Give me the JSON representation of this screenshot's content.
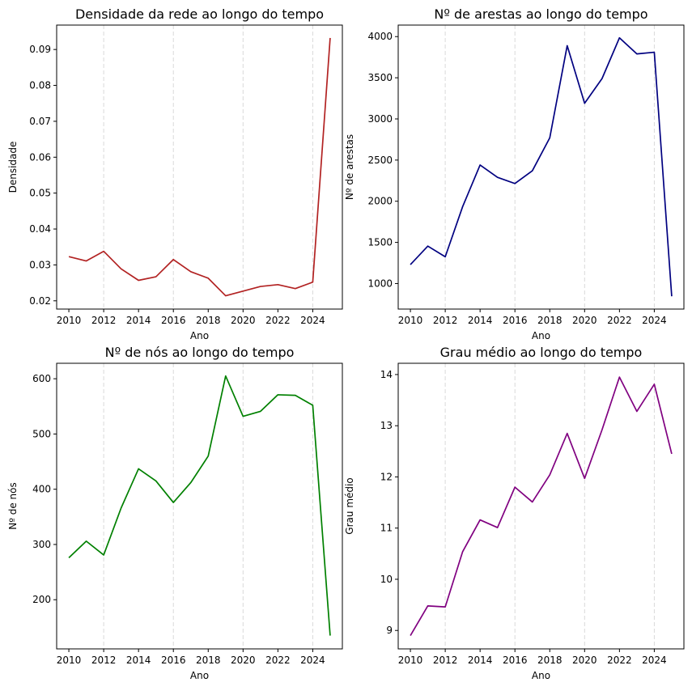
{
  "chart_data": [
    {
      "type": "line",
      "title": "Densidade da rede ao longo do tempo",
      "xlabel": "Ano",
      "ylabel": "Densidade",
      "color": "#b22222",
      "x": [
        2010,
        2011,
        2012,
        2013,
        2014,
        2015,
        2016,
        2017,
        2018,
        2019,
        2020,
        2021,
        2022,
        2023,
        2024,
        2025
      ],
      "values": [
        0.0323,
        0.0311,
        0.0338,
        0.0289,
        0.0257,
        0.0267,
        0.0315,
        0.0281,
        0.0263,
        0.0214,
        0.0227,
        0.024,
        0.0245,
        0.0234,
        0.0252,
        0.0932
      ],
      "xlim": [
        2009.3,
        2025.7
      ],
      "ylim": [
        0.0177,
        0.0968
      ],
      "xticks": [
        2010,
        2012,
        2014,
        2016,
        2018,
        2020,
        2022,
        2024
      ],
      "xtick_labels": [
        "2010",
        "2012",
        "2014",
        "2016",
        "2018",
        "2020",
        "2022",
        "2024"
      ],
      "yticks": [
        0.02,
        0.03,
        0.04,
        0.05,
        0.06,
        0.07,
        0.08,
        0.09
      ],
      "ytick_labels": [
        "0.02",
        "0.03",
        "0.04",
        "0.05",
        "0.06",
        "0.07",
        "0.08",
        "0.09"
      ],
      "grid_x": [
        2012,
        2016,
        2020,
        2024
      ]
    },
    {
      "type": "line",
      "title": "Nº de arestas ao longo do tempo",
      "xlabel": "Ano",
      "ylabel": "Nº de arestas",
      "color": "#000080",
      "x": [
        2010,
        2011,
        2012,
        2013,
        2014,
        2015,
        2016,
        2017,
        2018,
        2019,
        2020,
        2021,
        2022,
        2023,
        2024,
        2025
      ],
      "values": [
        1230,
        1455,
        1325,
        1935,
        2440,
        2290,
        2215,
        2370,
        2770,
        3890,
        3190,
        3490,
        3985,
        3790,
        3810,
        845
      ],
      "xlim": [
        2009.3,
        2025.7
      ],
      "ylim": [
        690,
        4140
      ],
      "xticks": [
        2010,
        2012,
        2014,
        2016,
        2018,
        2020,
        2022,
        2024
      ],
      "xtick_labels": [
        "2010",
        "2012",
        "2014",
        "2016",
        "2018",
        "2020",
        "2022",
        "2024"
      ],
      "yticks": [
        1000,
        1500,
        2000,
        2500,
        3000,
        3500,
        4000
      ],
      "ytick_labels": [
        "1000",
        "1500",
        "2000",
        "2500",
        "3000",
        "3500",
        "4000"
      ],
      "grid_x": [
        2012,
        2016,
        2020,
        2024
      ]
    },
    {
      "type": "line",
      "title": "Nº de nós ao longo do tempo",
      "xlabel": "Ano",
      "ylabel": "Nº de nós",
      "color": "#008000",
      "x": [
        2010,
        2011,
        2012,
        2013,
        2014,
        2015,
        2016,
        2017,
        2018,
        2019,
        2020,
        2021,
        2022,
        2023,
        2024,
        2025
      ],
      "values": [
        276,
        306,
        281,
        366,
        437,
        415,
        376,
        412,
        460,
        605,
        532,
        541,
        571,
        570,
        552,
        135
      ],
      "xlim": [
        2009.3,
        2025.7
      ],
      "ylim": [
        111,
        628
      ],
      "xticks": [
        2010,
        2012,
        2014,
        2016,
        2018,
        2020,
        2022,
        2024
      ],
      "xtick_labels": [
        "2010",
        "2012",
        "2014",
        "2016",
        "2018",
        "2020",
        "2022",
        "2024"
      ],
      "yticks": [
        200,
        300,
        400,
        500,
        600
      ],
      "ytick_labels": [
        "200",
        "300",
        "400",
        "500",
        "600"
      ],
      "grid_x": [
        2012,
        2016,
        2020,
        2024
      ]
    },
    {
      "type": "line",
      "title": "Grau médio ao longo do tempo",
      "xlabel": "Ano",
      "ylabel": "Grau médio",
      "color": "#800080",
      "x": [
        2010,
        2011,
        2012,
        2013,
        2014,
        2015,
        2016,
        2017,
        2018,
        2019,
        2020,
        2021,
        2022,
        2023,
        2024,
        2025
      ],
      "values": [
        8.9,
        9.48,
        9.46,
        10.54,
        11.16,
        11.01,
        11.8,
        11.51,
        12.04,
        12.85,
        11.97,
        12.92,
        13.95,
        13.28,
        13.81,
        12.45
      ],
      "xlim": [
        2009.3,
        2025.7
      ],
      "ylim": [
        8.64,
        14.22
      ],
      "xticks": [
        2010,
        2012,
        2014,
        2016,
        2018,
        2020,
        2022,
        2024
      ],
      "xtick_labels": [
        "2010",
        "2012",
        "2014",
        "2016",
        "2018",
        "2020",
        "2022",
        "2024"
      ],
      "yticks": [
        9,
        10,
        11,
        12,
        13,
        14
      ],
      "ytick_labels": [
        "9",
        "10",
        "11",
        "12",
        "13",
        "14"
      ],
      "grid_x": [
        2012,
        2016,
        2020,
        2024
      ]
    }
  ]
}
